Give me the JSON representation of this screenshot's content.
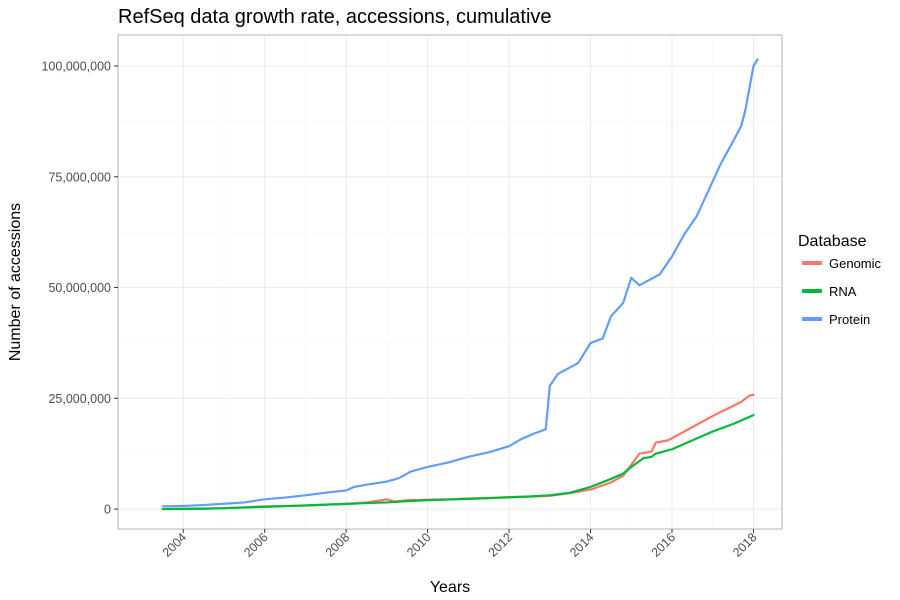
{
  "chart_data": {
    "type": "line",
    "title": "RefSeq data growth rate, accessions, cumulative",
    "xlabel": "Years",
    "ylabel": "Number of accessions",
    "xlim": [
      2002.4,
      2018.7
    ],
    "ylim": [
      -4500000,
      107000000
    ],
    "x_ticks": [
      2004,
      2006,
      2008,
      2010,
      2012,
      2014,
      2016,
      2018
    ],
    "x_tick_labels": [
      "2004",
      "2006",
      "2008",
      "2010",
      "2012",
      "2014",
      "2016",
      "2018"
    ],
    "y_ticks": [
      0,
      25000000,
      50000000,
      75000000,
      100000000
    ],
    "y_tick_labels": [
      "0",
      "25,000,000",
      "50,000,000",
      "75,000,000",
      "100,000,000"
    ],
    "grid": true,
    "legend": {
      "title": "Database",
      "position": "right"
    },
    "series": [
      {
        "name": "Genomic",
        "color": "#F8766D",
        "points": [
          [
            2003.5,
            0
          ],
          [
            2004.0,
            50000
          ],
          [
            2004.5,
            100000
          ],
          [
            2005.0,
            200000
          ],
          [
            2005.5,
            400000
          ],
          [
            2006.0,
            600000
          ],
          [
            2006.5,
            700000
          ],
          [
            2007.0,
            800000
          ],
          [
            2007.5,
            1000000
          ],
          [
            2008.0,
            1200000
          ],
          [
            2008.5,
            1500000
          ],
          [
            2009.0,
            2200000
          ],
          [
            2009.2,
            1700000
          ],
          [
            2009.5,
            2000000
          ],
          [
            2010.0,
            2100000
          ],
          [
            2010.5,
            2200000
          ],
          [
            2011.0,
            2400000
          ],
          [
            2011.5,
            2500000
          ],
          [
            2012.0,
            2700000
          ],
          [
            2012.5,
            2800000
          ],
          [
            2013.0,
            3000000
          ],
          [
            2013.5,
            3600000
          ],
          [
            2014.0,
            4400000
          ],
          [
            2014.5,
            6000000
          ],
          [
            2014.8,
            7500000
          ],
          [
            2015.0,
            10000000
          ],
          [
            2015.2,
            12500000
          ],
          [
            2015.5,
            13000000
          ],
          [
            2015.6,
            15000000
          ],
          [
            2015.9,
            15500000
          ],
          [
            2016.2,
            17000000
          ],
          [
            2016.5,
            18500000
          ],
          [
            2016.8,
            20000000
          ],
          [
            2017.1,
            21500000
          ],
          [
            2017.4,
            22800000
          ],
          [
            2017.7,
            24200000
          ],
          [
            2017.9,
            25600000
          ],
          [
            2018.0,
            25800000
          ]
        ]
      },
      {
        "name": "RNA",
        "color": "#00BA38",
        "points": [
          [
            2003.5,
            0
          ],
          [
            2004.0,
            50000
          ],
          [
            2004.5,
            100000
          ],
          [
            2005.0,
            200000
          ],
          [
            2005.5,
            350000
          ],
          [
            2006.0,
            500000
          ],
          [
            2006.5,
            650000
          ],
          [
            2007.0,
            800000
          ],
          [
            2007.5,
            1000000
          ],
          [
            2008.0,
            1150000
          ],
          [
            2008.5,
            1350000
          ],
          [
            2009.0,
            1500000
          ],
          [
            2009.5,
            1800000
          ],
          [
            2010.0,
            2000000
          ],
          [
            2010.5,
            2150000
          ],
          [
            2011.0,
            2300000
          ],
          [
            2011.5,
            2450000
          ],
          [
            2012.0,
            2650000
          ],
          [
            2012.5,
            2850000
          ],
          [
            2013.0,
            3100000
          ],
          [
            2013.5,
            3700000
          ],
          [
            2014.0,
            5000000
          ],
          [
            2014.5,
            6800000
          ],
          [
            2014.8,
            8000000
          ],
          [
            2015.0,
            9500000
          ],
          [
            2015.3,
            11500000
          ],
          [
            2015.5,
            11800000
          ],
          [
            2015.6,
            12500000
          ],
          [
            2016.0,
            13500000
          ],
          [
            2016.5,
            15500000
          ],
          [
            2017.0,
            17500000
          ],
          [
            2017.5,
            19200000
          ],
          [
            2018.0,
            21200000
          ]
        ]
      },
      {
        "name": "Protein",
        "color": "#619CFF",
        "points": [
          [
            2003.5,
            600000
          ],
          [
            2004.0,
            700000
          ],
          [
            2004.5,
            900000
          ],
          [
            2005.0,
            1200000
          ],
          [
            2005.5,
            1500000
          ],
          [
            2006.0,
            2200000
          ],
          [
            2006.5,
            2600000
          ],
          [
            2007.0,
            3100000
          ],
          [
            2007.5,
            3700000
          ],
          [
            2008.0,
            4200000
          ],
          [
            2008.2,
            5000000
          ],
          [
            2008.5,
            5500000
          ],
          [
            2009.0,
            6200000
          ],
          [
            2009.3,
            7000000
          ],
          [
            2009.6,
            8500000
          ],
          [
            2010.0,
            9500000
          ],
          [
            2010.5,
            10500000
          ],
          [
            2011.0,
            11800000
          ],
          [
            2011.5,
            12800000
          ],
          [
            2012.0,
            14200000
          ],
          [
            2012.3,
            15800000
          ],
          [
            2012.6,
            17000000
          ],
          [
            2012.9,
            18000000
          ],
          [
            2013.0,
            27800000
          ],
          [
            2013.2,
            30500000
          ],
          [
            2013.5,
            32000000
          ],
          [
            2013.7,
            33000000
          ],
          [
            2013.9,
            36000000
          ],
          [
            2014.0,
            37500000
          ],
          [
            2014.3,
            38500000
          ],
          [
            2014.5,
            43500000
          ],
          [
            2014.8,
            46500000
          ],
          [
            2015.0,
            52200000
          ],
          [
            2015.2,
            50500000
          ],
          [
            2015.5,
            52000000
          ],
          [
            2015.7,
            53000000
          ],
          [
            2016.0,
            57000000
          ],
          [
            2016.3,
            62000000
          ],
          [
            2016.6,
            66000000
          ],
          [
            2016.8,
            70000000
          ],
          [
            2017.0,
            74000000
          ],
          [
            2017.2,
            78000000
          ],
          [
            2017.5,
            83000000
          ],
          [
            2017.7,
            86500000
          ],
          [
            2017.8,
            90000000
          ],
          [
            2017.9,
            95000000
          ],
          [
            2018.0,
            100000000
          ],
          [
            2018.1,
            101500000
          ]
        ]
      }
    ]
  }
}
